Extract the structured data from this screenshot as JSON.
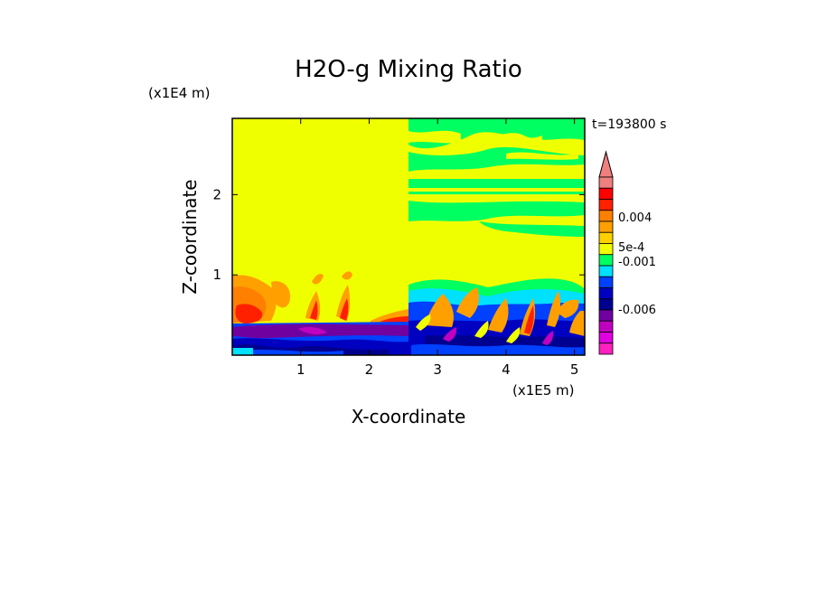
{
  "chart_data": {
    "type": "heatmap",
    "title": "H2O-g Mixing Ratio",
    "time_label": "t=193800 s",
    "xlabel": "X-coordinate",
    "ylabel": "Z-coordinate",
    "x_unit": "(x1E5 m)",
    "y_unit": "(x1E4 m)",
    "xlim": [
      0,
      5.15
    ],
    "ylim": [
      0,
      2.95
    ],
    "x_ticks": [
      "1",
      "2",
      "3",
      "4",
      "5"
    ],
    "y_ticks": [
      "1",
      "2"
    ],
    "colorbar": {
      "levels_top_to_bottom": [
        {
          "color": "#f08080",
          "value": null
        },
        {
          "color": "#ff0000",
          "value": null
        },
        {
          "color": "#ff2000",
          "value": null
        },
        {
          "color": "#ff8000",
          "value": null
        },
        {
          "color": "#ffa000",
          "value": null
        },
        {
          "color": "#ffd000",
          "value": null
        },
        {
          "color": "#f0ff00",
          "value": null
        },
        {
          "color": "#00ff60",
          "value": null
        },
        {
          "color": "#00e0ff",
          "value": null
        },
        {
          "color": "#0040ff",
          "value": null
        },
        {
          "color": "#0000c0",
          "value": null
        },
        {
          "color": "#000090",
          "value": null
        },
        {
          "color": "#7000a0",
          "value": null
        },
        {
          "color": "#c000c0",
          "value": null
        },
        {
          "color": "#e000e0",
          "value": null
        },
        {
          "color": "#ff20c0",
          "value": null
        }
      ],
      "tick_labels": [
        "0.004",
        "5e-4",
        "-0.001",
        "-0.006"
      ],
      "extend": "max"
    },
    "dominant_field": "near-zero anomaly (yellow) above ~0.5E4 m; negative (blue/purple) below ~0.4E4 m; positive orange/red plumes between 0.3E4 and 1.0E4 m"
  }
}
